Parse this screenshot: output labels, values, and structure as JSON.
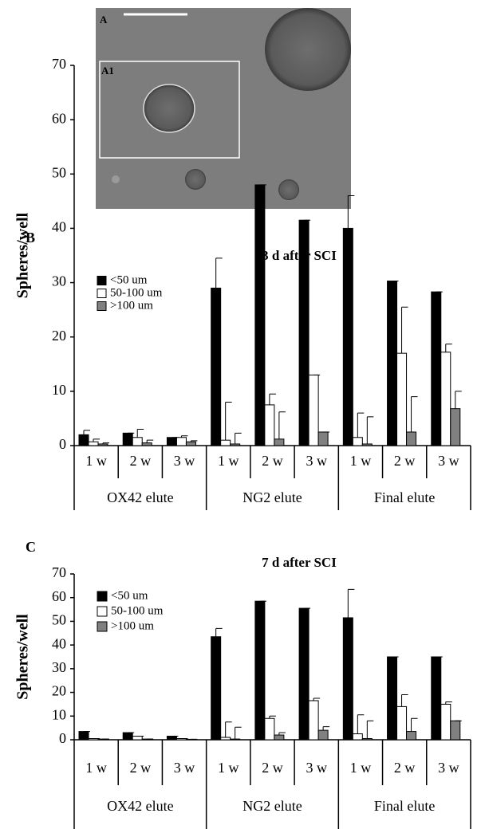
{
  "panel_a": {
    "label": "A",
    "inset_label": "A1"
  },
  "chart_data": [
    {
      "type": "bar",
      "panel_label": "B",
      "title": "3 d after SCI",
      "y_label": "Spheres/well",
      "categories": [
        "1 w",
        "2 w",
        "3 w",
        "1 w",
        "2 w",
        "3 w",
        "1 w",
        "2 w",
        "3 w"
      ],
      "group_labels": [
        "OX42 elute",
        "NG2 elute",
        "Final elute"
      ],
      "ylim": [
        0,
        70
      ],
      "yticks": [
        0,
        10,
        20,
        30,
        40,
        50,
        60,
        70
      ],
      "series": [
        {
          "name": "<50 um",
          "color": "#000000",
          "values": [
            2,
            2.3,
            1.5,
            29,
            48,
            41.5,
            40,
            30.3,
            28.3
          ],
          "errors": [
            0.8,
            0,
            0,
            5.5,
            0,
            0,
            6,
            0,
            0
          ]
        },
        {
          "name": "50-100 um",
          "color": "#ffffff",
          "values": [
            0.7,
            1.5,
            1.5,
            1,
            7.5,
            13,
            1.5,
            17,
            17.2
          ],
          "errors": [
            0.5,
            1.5,
            0.3,
            7,
            2,
            0,
            4.5,
            8.5,
            1.5
          ]
        },
        {
          "name": ">100 um",
          "color": "#808080",
          "values": [
            0.3,
            0.5,
            0.7,
            0.3,
            1.2,
            2.5,
            0.3,
            2.5,
            6.8
          ],
          "errors": [
            0.2,
            0.5,
            0.2,
            2,
            5,
            0,
            5,
            6.5,
            3.2
          ]
        }
      ]
    },
    {
      "type": "bar",
      "panel_label": "C",
      "title": "7 d after SCI",
      "y_label": "Spheres/well",
      "categories": [
        "1 w",
        "2 w",
        "3 w",
        "1 w",
        "2 w",
        "3 w",
        "1 w",
        "2 w",
        "3 w"
      ],
      "group_labels": [
        "OX42 elute",
        "NG2 elute",
        "Final elute"
      ],
      "ylim": [
        0,
        70
      ],
      "yticks": [
        0,
        10,
        20,
        30,
        40,
        50,
        60,
        70
      ],
      "series": [
        {
          "name": "<50 um",
          "color": "#000000",
          "values": [
            3.5,
            3,
            1.5,
            43.5,
            58.5,
            55.5,
            51.5,
            35,
            35
          ],
          "errors": [
            0,
            0,
            0,
            3.5,
            0,
            0,
            12,
            0,
            0
          ]
        },
        {
          "name": "50-100 um",
          "color": "#ffffff",
          "values": [
            0.5,
            1.5,
            0.5,
            1,
            9,
            16.5,
            2.5,
            14,
            15
          ],
          "errors": [
            0,
            0,
            0,
            6.5,
            1,
            1,
            8,
            5,
            1
          ]
        },
        {
          "name": ">100 um",
          "color": "#808080",
          "values": [
            0.3,
            0.3,
            0.2,
            0.3,
            2,
            4,
            0.5,
            3.5,
            8
          ],
          "errors": [
            0,
            0,
            0,
            5,
            1,
            1.5,
            7.5,
            5.5,
            0
          ]
        }
      ]
    }
  ]
}
